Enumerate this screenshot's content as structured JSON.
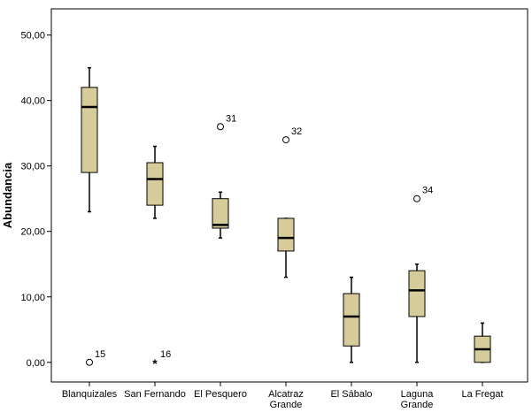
{
  "chart_data": {
    "type": "boxplot",
    "ylabel": "Abundancia",
    "xlabel": "",
    "ylim": [
      -3,
      54
    ],
    "yticks": [
      0,
      10,
      20,
      30,
      40,
      50
    ],
    "ytick_labels": [
      "0,00",
      "10,00",
      "20,00",
      "30,00",
      "40,00",
      "50,00"
    ],
    "categories": [
      [
        "Blanquizales"
      ],
      [
        "San Fernando"
      ],
      [
        "El Pesquero"
      ],
      [
        "Alcatraz",
        "Grande"
      ],
      [
        "El Sábalo"
      ],
      [
        "Laguna",
        "Grande"
      ],
      [
        "La Fregat"
      ]
    ],
    "boxes": [
      {
        "min": 23,
        "q1": 29,
        "median": 39,
        "q3": 42,
        "max": 45
      },
      {
        "min": 22,
        "q1": 24,
        "median": 28,
        "q3": 30.5,
        "max": 33
      },
      {
        "min": 19,
        "q1": 20.5,
        "median": 21,
        "q3": 25,
        "max": 26
      },
      {
        "min": 13,
        "q1": 17,
        "median": 19,
        "q3": 22,
        "max": 22
      },
      {
        "min": 0,
        "q1": 2.5,
        "median": 7,
        "q3": 10.5,
        "max": 13
      },
      {
        "min": 0,
        "q1": 7,
        "median": 11,
        "q3": 14,
        "max": 15
      },
      {
        "min": 0,
        "q1": 0,
        "median": 2,
        "q3": 4,
        "max": 6
      }
    ],
    "outliers": [
      {
        "category": 0,
        "value": 0,
        "label": "15",
        "marker": "circle"
      },
      {
        "category": 1,
        "value": 0,
        "label": "16",
        "marker": "star"
      },
      {
        "category": 2,
        "value": 36,
        "label": "31",
        "marker": "circle"
      },
      {
        "category": 3,
        "value": 34,
        "label": "32",
        "marker": "circle"
      },
      {
        "category": 5,
        "value": 25,
        "label": "34",
        "marker": "circle"
      }
    ],
    "colors": {
      "box_fill": "#d6cc9a",
      "stroke": "#000000",
      "background": "#ffffff"
    }
  }
}
